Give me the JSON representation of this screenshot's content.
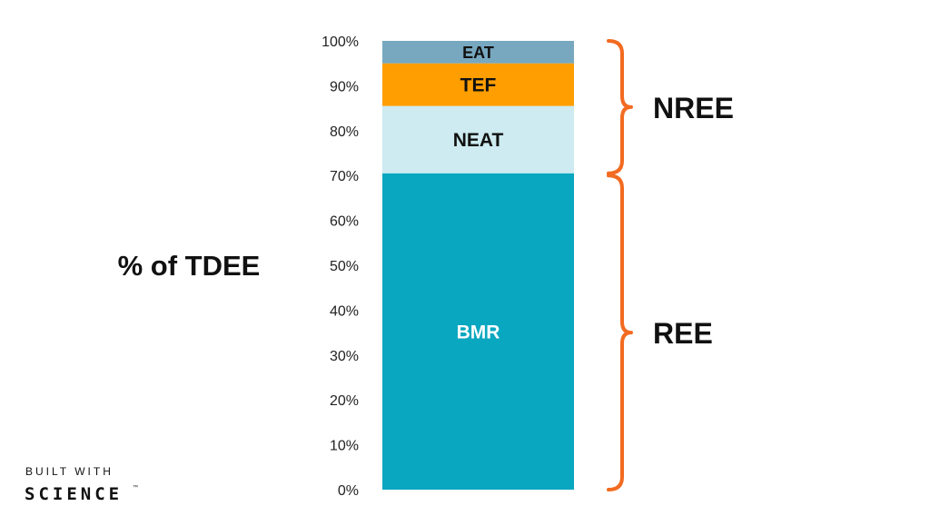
{
  "chart_data": {
    "type": "bar",
    "stacked": true,
    "ylabel": "% of TDEE",
    "ylim": [
      0,
      100
    ],
    "y_ticks": [
      "0%",
      "10%",
      "20%",
      "30%",
      "40%",
      "50%",
      "60%",
      "70%",
      "80%",
      "90%",
      "100%"
    ],
    "segments": [
      {
        "label": "BMR",
        "value": 70.5,
        "color": "#0aa7c0",
        "text_color": "#ffffff"
      },
      {
        "label": "NEAT",
        "value": 15.0,
        "color": "#cdebf0",
        "text_color": "#111111"
      },
      {
        "label": "TEF",
        "value": 9.5,
        "color": "#ff9e00",
        "text_color": "#111111"
      },
      {
        "label": "EAT",
        "value": 5.0,
        "color": "#77a8c0",
        "text_color": "#111111"
      }
    ],
    "annotations": [
      {
        "label": "NREE",
        "from": 70.5,
        "to": 100,
        "color": "#f26b21"
      },
      {
        "label": "REE",
        "from": 0,
        "to": 70,
        "color": "#f26b21"
      }
    ]
  },
  "brand": {
    "line1": "BUILT WITH",
    "line2": "SCIENCE",
    "mark": "™"
  }
}
